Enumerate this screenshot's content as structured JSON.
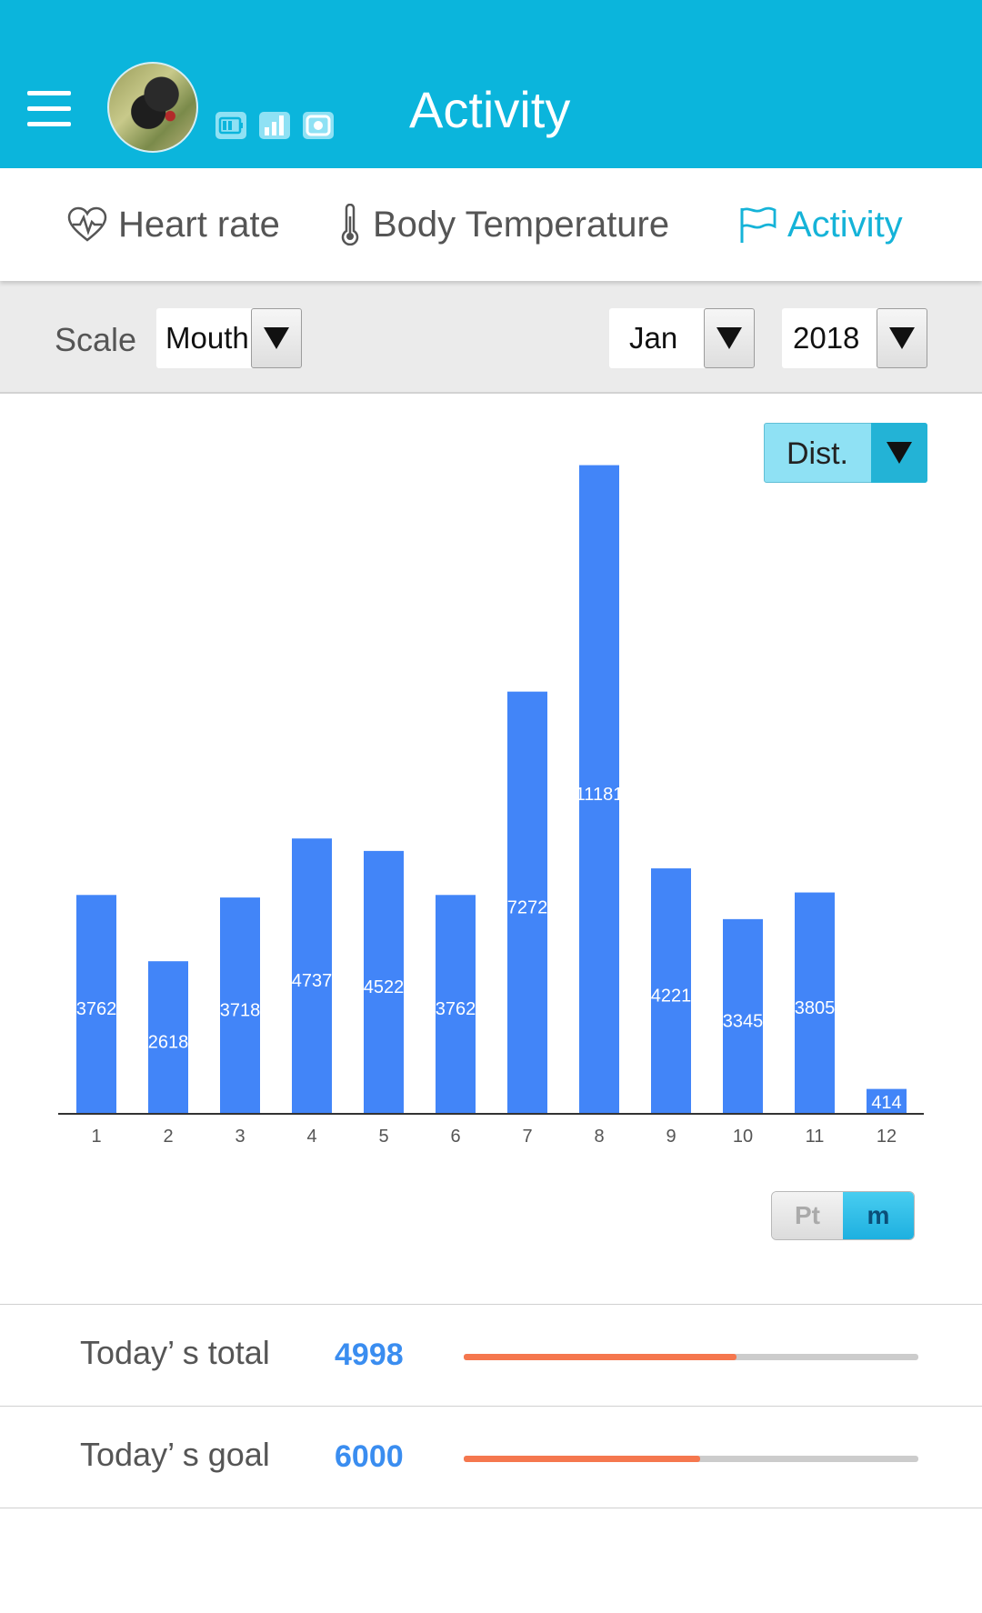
{
  "header": {
    "title": "Activity"
  },
  "tabs": [
    {
      "label": "Heart rate",
      "icon": "heart-pulse-icon",
      "active": false
    },
    {
      "label": "Body Temperature",
      "icon": "thermometer-icon",
      "active": false
    },
    {
      "label": "Activity",
      "icon": "flag-icon",
      "active": true
    }
  ],
  "filters": {
    "scale_label": "Scale",
    "scale_value": "Mouth",
    "month_value": "Jan",
    "year_value": "2018"
  },
  "metric_select": {
    "value": "Dist."
  },
  "unit_toggle": {
    "options": [
      "Pt",
      "m"
    ],
    "selected": "m"
  },
  "chart_data": {
    "type": "bar",
    "categories": [
      "1",
      "2",
      "3",
      "4",
      "5",
      "6",
      "7",
      "8",
      "9",
      "10",
      "11",
      "12"
    ],
    "values": [
      3762,
      2618,
      3718,
      4737,
      4522,
      3762,
      7272,
      11181,
      4221,
      3345,
      3805,
      414
    ],
    "color": "#4285f8",
    "ylim": [
      0,
      11300
    ],
    "grid": false
  },
  "stats": {
    "total": {
      "label": "Today’ s total",
      "value": "4998",
      "progress": 0.6
    },
    "goal": {
      "label": "Today’ s goal",
      "value": "6000",
      "progress": 0.52
    }
  },
  "colors": {
    "header": "#0bb5dc",
    "accent": "#15b3d8",
    "bar": "#4285f8",
    "progress": "#f5774e"
  }
}
